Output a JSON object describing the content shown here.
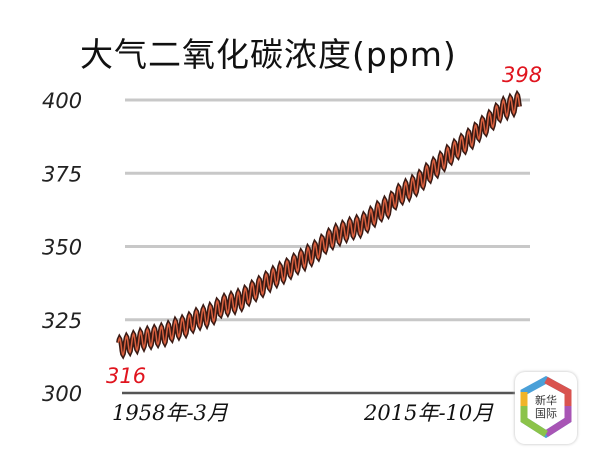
{
  "chart_data": {
    "type": "line",
    "title": "大气二氧化碳浓度(ppm)",
    "xlabel": "",
    "ylabel": "",
    "ylim": [
      300,
      400
    ],
    "yticks": [
      "300",
      "325",
      "350",
      "375",
      "400"
    ],
    "xtick_labels": [
      "1958年-3月",
      "2015年-10月"
    ],
    "xlim": [
      1958.2,
      2015.8
    ],
    "grid": true,
    "seasonal_cycle": true,
    "series": [
      {
        "x": [
          1958,
          1959,
          1960,
          1961,
          1962,
          1963,
          1964,
          1965,
          1966,
          1967,
          1968,
          1969,
          1970,
          1971,
          1972,
          1973,
          1974,
          1975,
          1976,
          1977,
          1978,
          1979,
          1980,
          1981,
          1982,
          1983,
          1984,
          1985,
          1986,
          1987,
          1988,
          1989,
          1990,
          1991,
          1992,
          1993,
          1994,
          1995,
          1996,
          1997,
          1998,
          1999,
          2000,
          2001,
          2002,
          2003,
          2004,
          2005,
          2006,
          2007,
          2008,
          2009,
          2010,
          2011,
          2012,
          2013,
          2014,
          2015
        ],
        "values": [
          315.5,
          316.0,
          316.9,
          317.6,
          318.5,
          319.0,
          319.6,
          320.0,
          321.4,
          322.2,
          323.0,
          324.6,
          325.7,
          326.3,
          327.5,
          329.7,
          330.2,
          331.1,
          332.0,
          333.8,
          335.4,
          336.8,
          338.7,
          340.1,
          341.4,
          343.0,
          344.6,
          346.0,
          347.4,
          349.2,
          351.6,
          353.1,
          354.4,
          355.6,
          356.4,
          357.1,
          358.8,
          360.8,
          362.6,
          363.7,
          366.7,
          368.4,
          369.7,
          371.3,
          373.5,
          375.8,
          377.5,
          379.8,
          381.9,
          383.8,
          385.6,
          387.4,
          389.9,
          391.7,
          393.9,
          396.5,
          397.5,
          398.5
        ],
        "color": "#d9603f"
      }
    ],
    "annotations": [
      {
        "text": "316",
        "color": "#e0141e"
      },
      {
        "text": "398",
        "color": "#e0141e"
      }
    ]
  },
  "logo": {
    "text_line1": "新华",
    "text_line2": "国际"
  }
}
